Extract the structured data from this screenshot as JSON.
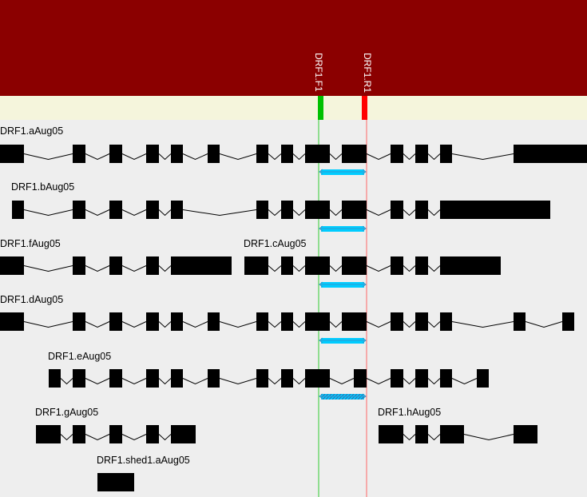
{
  "colors": {
    "header": "#8b0000",
    "band": "#f5f5dc",
    "background": "#eeeeee",
    "exon": "#000000",
    "amplicon": "#00ccff",
    "forward_primer": "#00c000",
    "reverse_primer": "#ff0000",
    "forward_guide": "#33cc33",
    "reverse_guide": "#ff6666"
  },
  "primers": [
    {
      "name": "DRF1.F1",
      "strand": "forward"
    },
    {
      "name": "DRF1.R1",
      "strand": "reverse"
    }
  ],
  "transcripts": [
    {
      "name": "DRF1.aAug05",
      "amplicon": "solid"
    },
    {
      "name": "DRF1.bAug05",
      "amplicon": "solid"
    },
    {
      "name": "DRF1.fAug05",
      "amplicon": "none"
    },
    {
      "name": "DRF1.cAug05",
      "amplicon": "solid"
    },
    {
      "name": "DRF1.dAug05",
      "amplicon": "solid"
    },
    {
      "name": "DRF1.eAug05",
      "amplicon": "hatched"
    },
    {
      "name": "DRF1.gAug05",
      "amplicon": "none"
    },
    {
      "name": "DRF1.hAug05",
      "amplicon": "none"
    },
    {
      "name": "DRF1.shed1.aAug05",
      "amplicon": "none"
    }
  ]
}
